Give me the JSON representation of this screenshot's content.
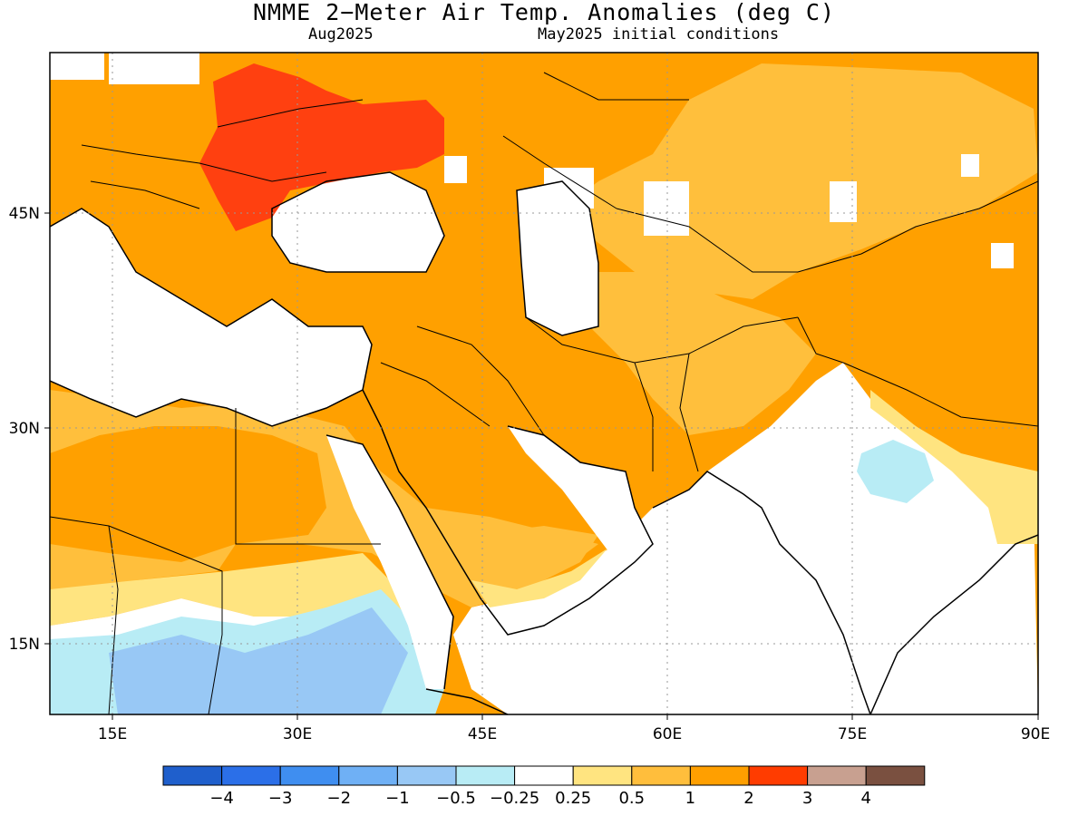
{
  "title": "NMME 2−Meter Air Temp. Anomalies (deg C)",
  "valid_month": "Aug2025",
  "initial_conditions": "May2025 initial conditions",
  "lon_labels": [
    "15E",
    "30E",
    "45E",
    "60E",
    "75E",
    "90E"
  ],
  "lat_labels": [
    "45N",
    "30N",
    "15N"
  ],
  "colorbar": {
    "colors": [
      "#1f5fcc",
      "#2b6fe8",
      "#3f8ef0",
      "#6fb0f5",
      "#98c8f5",
      "#b8ecf5",
      "#ffffff",
      "#ffe480",
      "#ffbe3c",
      "#ff9f00",
      "#ff3c00",
      "#c8a090",
      "#7a5040"
    ],
    "tick_labels": [
      "−4",
      "−3",
      "−2",
      "−1",
      "−0.5",
      "−0.25",
      "0.25",
      "0.5",
      "1",
      "2",
      "3",
      "4"
    ]
  },
  "colors": {
    "anomaly_2_3": "#ffa000",
    "anomaly_1_2": "#ffbf3c",
    "anomaly_0_5_1": "#ffe480",
    "anomaly_3_4": "#ff4010",
    "anomaly_neg_0_25": "#b8ecf5",
    "anomaly_neg_0_5": "#98c8f5"
  }
}
